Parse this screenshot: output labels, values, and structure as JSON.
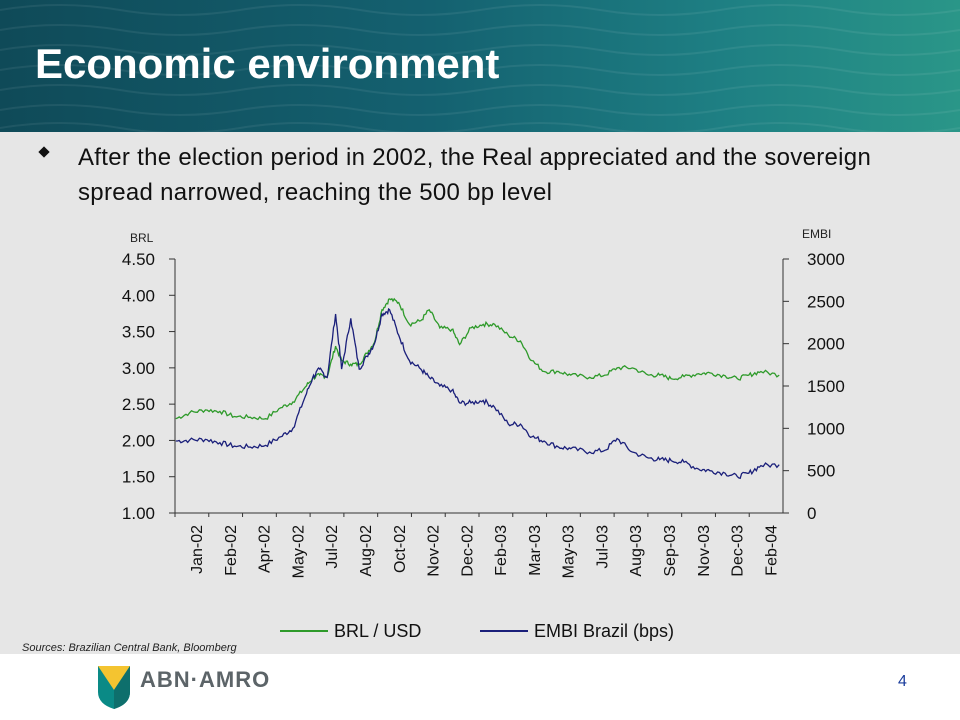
{
  "slide": {
    "title": "Economic environment",
    "bullet": "After the election period in 2002, the Real appreciated and the sovereign spread narrowed, reaching the 500 bp level",
    "source": "Sources: Brazilian Central Bank, Bloomberg",
    "logo_text": "ABN·AMRO",
    "page_number": "4"
  },
  "colors": {
    "header": "#146170",
    "panel": "#e6e6e6",
    "brl": "#2e9a2a",
    "embi": "#1a1f7a"
  },
  "chart_data": {
    "type": "line",
    "left_axis_label": "BRL",
    "right_axis_label": "EMBI",
    "left_ylim": [
      1.0,
      4.5
    ],
    "right_ylim": [
      0,
      3000
    ],
    "left_ticks": [
      "1.00",
      "1.50",
      "2.00",
      "2.50",
      "3.00",
      "3.50",
      "4.00",
      "4.50"
    ],
    "right_ticks": [
      "0",
      "500",
      "1000",
      "1500",
      "2000",
      "2500",
      "3000"
    ],
    "x_tick_labels": [
      "Jan-02",
      "Feb-02",
      "Apr-02",
      "May-02",
      "Jul-02",
      "Aug-02",
      "Oct-02",
      "Nov-02",
      "Dec-02",
      "Feb-03",
      "Mar-03",
      "May-03",
      "Jul-03",
      "Aug-03",
      "Sep-03",
      "Nov-03",
      "Dec-03",
      "Feb-04"
    ],
    "x_range": [
      "2002-01-01",
      "2004-03-10"
    ],
    "legend_position": "bottom",
    "series": [
      {
        "name": "BRL / USD",
        "axis": "left",
        "points": [
          [
            "2002-01-02",
            2.3
          ],
          [
            "2002-01-20",
            2.38
          ],
          [
            "2002-02-10",
            2.42
          ],
          [
            "2002-03-01",
            2.4
          ],
          [
            "2002-03-20",
            2.33
          ],
          [
            "2002-04-10",
            2.32
          ],
          [
            "2002-04-30",
            2.3
          ],
          [
            "2002-05-20",
            2.45
          ],
          [
            "2002-06-05",
            2.53
          ],
          [
            "2002-06-20",
            2.72
          ],
          [
            "2002-07-01",
            2.86
          ],
          [
            "2002-07-10",
            2.9
          ],
          [
            "2002-07-20",
            2.88
          ],
          [
            "2002-07-31",
            3.3
          ],
          [
            "2002-08-08",
            3.1
          ],
          [
            "2002-08-20",
            3.05
          ],
          [
            "2002-08-31",
            3.05
          ],
          [
            "2002-09-10",
            3.2
          ],
          [
            "2002-09-20",
            3.35
          ],
          [
            "2002-09-30",
            3.8
          ],
          [
            "2002-10-10",
            3.95
          ],
          [
            "2002-10-22",
            3.9
          ],
          [
            "2002-11-05",
            3.6
          ],
          [
            "2002-11-20",
            3.65
          ],
          [
            "2002-12-01",
            3.8
          ],
          [
            "2002-12-15",
            3.55
          ],
          [
            "2002-12-31",
            3.53
          ],
          [
            "2003-01-10",
            3.32
          ],
          [
            "2003-01-25",
            3.55
          ],
          [
            "2003-02-10",
            3.6
          ],
          [
            "2003-02-25",
            3.6
          ],
          [
            "2003-03-15",
            3.45
          ],
          [
            "2003-03-31",
            3.37
          ],
          [
            "2003-04-15",
            3.1
          ],
          [
            "2003-05-01",
            2.95
          ],
          [
            "2003-05-20",
            2.95
          ],
          [
            "2003-06-05",
            2.9
          ],
          [
            "2003-06-30",
            2.87
          ],
          [
            "2003-07-20",
            2.9
          ],
          [
            "2003-08-05",
            3.0
          ],
          [
            "2003-08-25",
            3.0
          ],
          [
            "2003-09-15",
            2.9
          ],
          [
            "2003-09-30",
            2.9
          ],
          [
            "2003-10-15",
            2.85
          ],
          [
            "2003-11-01",
            2.88
          ],
          [
            "2003-11-20",
            2.92
          ],
          [
            "2003-12-05",
            2.93
          ],
          [
            "2003-12-25",
            2.89
          ],
          [
            "2004-01-10",
            2.85
          ],
          [
            "2004-01-25",
            2.9
          ],
          [
            "2004-02-10",
            2.95
          ],
          [
            "2004-03-05",
            2.9
          ]
        ]
      },
      {
        "name": "EMBI Brazil (bps)",
        "axis": "right",
        "points": [
          [
            "2002-01-02",
            850
          ],
          [
            "2002-01-20",
            860
          ],
          [
            "2002-02-10",
            870
          ],
          [
            "2002-03-01",
            830
          ],
          [
            "2002-03-20",
            790
          ],
          [
            "2002-04-10",
            780
          ],
          [
            "2002-04-30",
            800
          ],
          [
            "2002-05-20",
            900
          ],
          [
            "2002-06-05",
            1000
          ],
          [
            "2002-06-20",
            1350
          ],
          [
            "2002-07-01",
            1600
          ],
          [
            "2002-07-10",
            1700
          ],
          [
            "2002-07-20",
            1600
          ],
          [
            "2002-07-31",
            2350
          ],
          [
            "2002-08-08",
            1700
          ],
          [
            "2002-08-20",
            2300
          ],
          [
            "2002-08-31",
            1700
          ],
          [
            "2002-09-10",
            1850
          ],
          [
            "2002-09-20",
            2000
          ],
          [
            "2002-09-30",
            2350
          ],
          [
            "2002-10-10",
            2400
          ],
          [
            "2002-10-22",
            2100
          ],
          [
            "2002-11-05",
            1800
          ],
          [
            "2002-11-20",
            1700
          ],
          [
            "2002-12-01",
            1600
          ],
          [
            "2002-12-15",
            1500
          ],
          [
            "2002-12-31",
            1450
          ],
          [
            "2003-01-10",
            1300
          ],
          [
            "2003-01-25",
            1300
          ],
          [
            "2003-02-10",
            1330
          ],
          [
            "2003-02-25",
            1250
          ],
          [
            "2003-03-15",
            1050
          ],
          [
            "2003-03-31",
            1050
          ],
          [
            "2003-04-15",
            900
          ],
          [
            "2003-05-01",
            850
          ],
          [
            "2003-05-20",
            780
          ],
          [
            "2003-06-05",
            760
          ],
          [
            "2003-06-30",
            720
          ],
          [
            "2003-07-20",
            740
          ],
          [
            "2003-08-05",
            880
          ],
          [
            "2003-08-25",
            720
          ],
          [
            "2003-09-15",
            650
          ],
          [
            "2003-09-30",
            630
          ],
          [
            "2003-10-15",
            620
          ],
          [
            "2003-11-01",
            600
          ],
          [
            "2003-11-20",
            520
          ],
          [
            "2003-12-05",
            500
          ],
          [
            "2003-12-25",
            470
          ],
          [
            "2004-01-10",
            430
          ],
          [
            "2004-01-25",
            470
          ],
          [
            "2004-02-10",
            560
          ],
          [
            "2004-03-05",
            570
          ]
        ]
      }
    ]
  }
}
